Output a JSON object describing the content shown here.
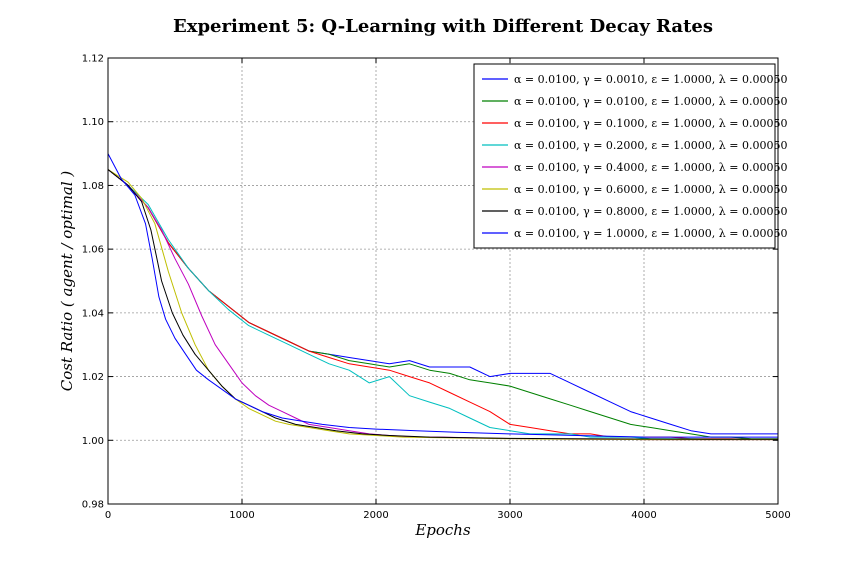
{
  "chart_data": {
    "type": "line",
    "title": "Experiment 5: Q-Learning with Different Decay Rates",
    "xlabel": "Epochs",
    "ylabel": "Cost Ratio ( agent / optimal )",
    "xlim": [
      0,
      5000
    ],
    "ylim": [
      0.98,
      1.12
    ],
    "xticks": [
      "0",
      "1000",
      "2000",
      "3000",
      "4000",
      "5000"
    ],
    "yticks": [
      "0.98",
      "1.00",
      "1.02",
      "1.04",
      "1.06",
      "1.08",
      "1.10",
      "1.12"
    ],
    "grid": true,
    "legend_position": "top-right",
    "series": [
      {
        "name": "α = 0.0100, γ = 0.0010, ε = 1.0000, λ = 0.00050",
        "color": "#0000ff",
        "x": [
          0,
          150,
          300,
          450,
          600,
          750,
          900,
          1050,
          1200,
          1350,
          1500,
          1650,
          1800,
          1950,
          2100,
          2250,
          2400,
          2550,
          2700,
          2850,
          3000,
          3150,
          3300,
          3450,
          3600,
          3750,
          3900,
          4050,
          4200,
          4350,
          4500,
          4650,
          4800,
          5000
        ],
        "y": [
          1.085,
          1.08,
          1.073,
          1.062,
          1.054,
          1.047,
          1.042,
          1.037,
          1.034,
          1.031,
          1.028,
          1.027,
          1.026,
          1.025,
          1.024,
          1.025,
          1.023,
          1.023,
          1.023,
          1.02,
          1.021,
          1.021,
          1.021,
          1.018,
          1.015,
          1.012,
          1.009,
          1.007,
          1.005,
          1.003,
          1.002,
          1.002,
          1.002,
          1.002
        ]
      },
      {
        "name": "α = 0.0100, γ = 0.0100, ε = 1.0000, λ = 0.00050",
        "color": "#008000",
        "x": [
          0,
          150,
          300,
          450,
          600,
          750,
          900,
          1050,
          1200,
          1350,
          1500,
          1650,
          1800,
          1950,
          2100,
          2250,
          2400,
          2550,
          2700,
          2850,
          3000,
          3150,
          3300,
          3450,
          3600,
          3750,
          3900,
          4050,
          4200,
          4350,
          4500,
          4650,
          4800,
          5000
        ],
        "y": [
          1.085,
          1.08,
          1.073,
          1.062,
          1.054,
          1.047,
          1.042,
          1.037,
          1.034,
          1.031,
          1.028,
          1.027,
          1.025,
          1.024,
          1.023,
          1.024,
          1.022,
          1.021,
          1.019,
          1.018,
          1.017,
          1.015,
          1.013,
          1.011,
          1.009,
          1.007,
          1.005,
          1.004,
          1.003,
          1.002,
          1.001,
          1.001,
          1.0005,
          1.0005
        ]
      },
      {
        "name": "α = 0.0100, γ = 0.1000, ε = 1.0000, λ = 0.00050",
        "color": "#ff0000",
        "x": [
          0,
          150,
          300,
          450,
          600,
          750,
          900,
          1050,
          1200,
          1350,
          1500,
          1650,
          1800,
          1950,
          2100,
          2250,
          2400,
          2550,
          2700,
          2850,
          3000,
          3150,
          3300,
          3450,
          3600,
          3750,
          3900,
          4050,
          4200,
          4350,
          4500,
          4650,
          4800,
          5000
        ],
        "y": [
          1.085,
          1.08,
          1.073,
          1.062,
          1.054,
          1.047,
          1.042,
          1.037,
          1.034,
          1.031,
          1.028,
          1.026,
          1.024,
          1.023,
          1.022,
          1.02,
          1.018,
          1.015,
          1.012,
          1.009,
          1.005,
          1.004,
          1.003,
          1.002,
          1.002,
          1.001,
          1.001,
          1.001,
          1.001,
          1.0005,
          1.0005,
          1.0005,
          1.0003,
          1.0003
        ]
      },
      {
        "name": "α = 0.0100, γ = 0.2000, ε = 1.0000, λ = 0.00050",
        "color": "#00bfbf",
        "x": [
          0,
          150,
          300,
          450,
          600,
          750,
          900,
          1050,
          1200,
          1350,
          1500,
          1650,
          1800,
          1950,
          2100,
          2250,
          2400,
          2550,
          2700,
          2850,
          3000,
          3150,
          3300,
          3450,
          3600,
          3750,
          3900,
          4050,
          4200,
          4350,
          4500,
          4650,
          4800,
          5000
        ],
        "y": [
          1.085,
          1.08,
          1.074,
          1.063,
          1.054,
          1.047,
          1.041,
          1.036,
          1.033,
          1.03,
          1.027,
          1.024,
          1.022,
          1.018,
          1.02,
          1.014,
          1.012,
          1.01,
          1.007,
          1.004,
          1.003,
          1.002,
          1.002,
          1.002,
          1.001,
          1.001,
          1.001,
          1.0005,
          1.0005,
          1.0005,
          1.0003,
          1.0003,
          1.0003,
          1.0003
        ]
      },
      {
        "name": "α = 0.0100, γ = 0.4000, ε = 1.0000, λ = 0.00050",
        "color": "#bf00bf",
        "x": [
          0,
          150,
          300,
          400,
          500,
          600,
          700,
          800,
          900,
          1000,
          1100,
          1200,
          1300,
          1400,
          1500,
          1650,
          1800,
          1950,
          2100,
          2300,
          2500,
          2700,
          2900,
          3100,
          3300,
          3600,
          4000,
          4500,
          5000
        ],
        "y": [
          1.085,
          1.08,
          1.073,
          1.066,
          1.057,
          1.049,
          1.039,
          1.03,
          1.024,
          1.018,
          1.014,
          1.011,
          1.009,
          1.007,
          1.005,
          1.004,
          1.003,
          1.002,
          1.0015,
          1.001,
          1.001,
          1.0008,
          1.0006,
          1.0005,
          1.0004,
          1.0003,
          1.0002,
          1.0002,
          1.0002
        ]
      },
      {
        "name": "α = 0.0100, γ = 0.6000, ε = 1.0000, λ = 0.00050",
        "color": "#bfbf00",
        "x": [
          0,
          150,
          250,
          350,
          450,
          550,
          650,
          750,
          850,
          950,
          1050,
          1150,
          1250,
          1350,
          1500,
          1650,
          1800,
          2000,
          2200,
          2500,
          2800,
          3200,
          3600,
          4000,
          4500,
          5000
        ],
        "y": [
          1.085,
          1.081,
          1.076,
          1.068,
          1.053,
          1.04,
          1.03,
          1.022,
          1.017,
          1.013,
          1.01,
          1.008,
          1.006,
          1.005,
          1.004,
          1.003,
          1.002,
          1.0015,
          1.001,
          1.0008,
          1.0006,
          1.0004,
          1.0003,
          1.0002,
          1.0002,
          1.0002
        ]
      },
      {
        "name": "α = 0.0100, γ = 0.8000, ε = 1.0000, λ = 0.00050",
        "color": "#000000",
        "x": [
          0,
          150,
          250,
          320,
          400,
          480,
          560,
          650,
          750,
          850,
          950,
          1050,
          1150,
          1250,
          1400,
          1550,
          1700,
          1900,
          2100,
          2400,
          2700,
          3000,
          3500,
          4000,
          4500,
          5000
        ],
        "y": [
          1.085,
          1.08,
          1.075,
          1.066,
          1.05,
          1.04,
          1.033,
          1.027,
          1.022,
          1.017,
          1.013,
          1.011,
          1.009,
          1.007,
          1.005,
          1.004,
          1.003,
          1.002,
          1.0015,
          1.001,
          1.0008,
          1.0006,
          1.0005,
          1.0004,
          1.0003,
          1.0003
        ]
      },
      {
        "name": "α = 0.0100, γ = 1.0000, ε = 1.0000, λ = 0.00050",
        "color": "#0000ff",
        "x": [
          0,
          100,
          200,
          280,
          330,
          380,
          430,
          500,
          580,
          660,
          750,
          850,
          950,
          1050,
          1150,
          1300,
          1450,
          1600,
          1800,
          2000,
          2300,
          2600,
          3000,
          3500,
          4000,
          4500,
          5000
        ],
        "y": [
          1.09,
          1.082,
          1.077,
          1.068,
          1.057,
          1.045,
          1.038,
          1.032,
          1.027,
          1.022,
          1.019,
          1.016,
          1.013,
          1.011,
          1.009,
          1.007,
          1.006,
          1.005,
          1.004,
          1.0035,
          1.003,
          1.0025,
          1.002,
          1.0015,
          1.001,
          1.001,
          1.001
        ]
      }
    ]
  }
}
